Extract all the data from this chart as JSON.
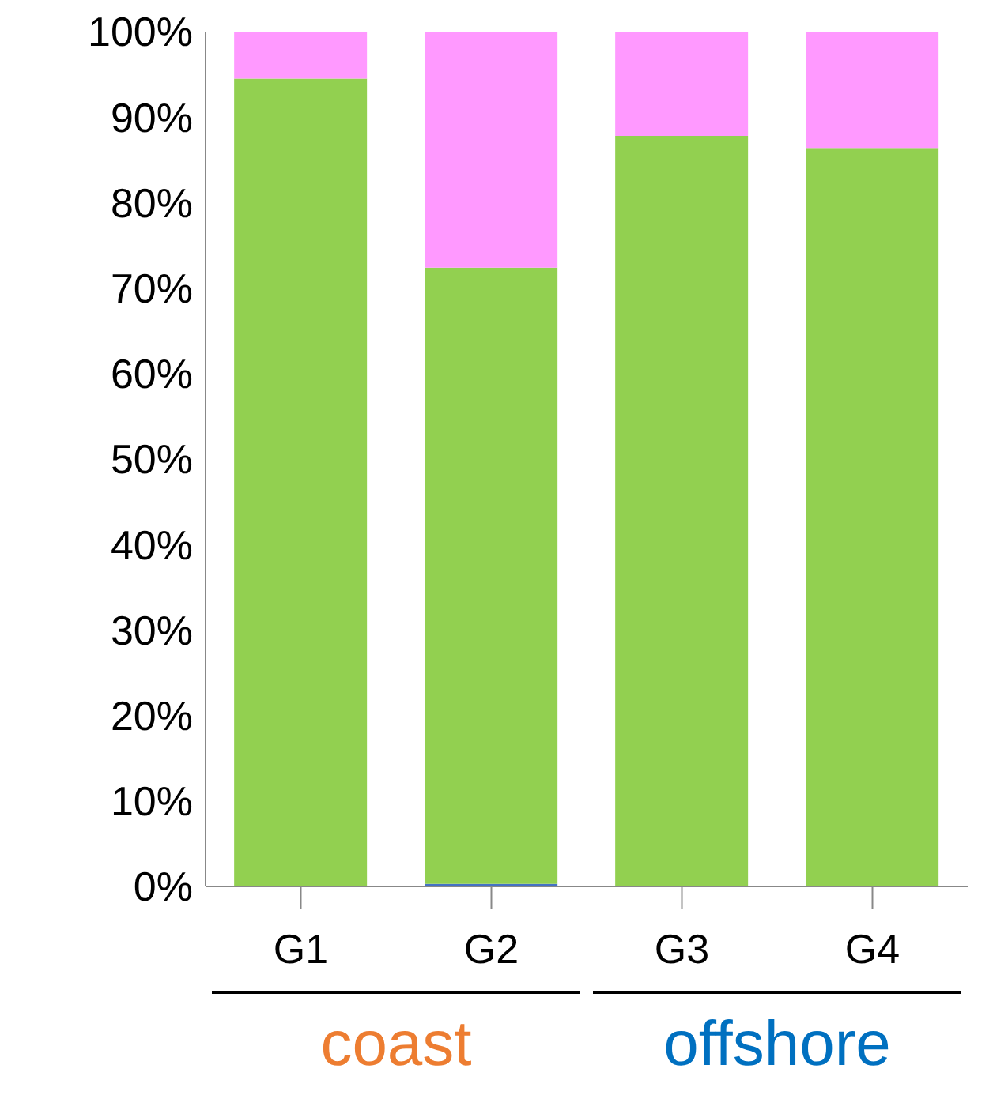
{
  "chart_data": {
    "type": "bar",
    "stacked": true,
    "categories": [
      "G1",
      "G2",
      "G3",
      "G4"
    ],
    "series": [
      {
        "color": "#4472c4",
        "values": [
          0,
          0.3,
          0,
          0
        ]
      },
      {
        "color": "#92d050",
        "values": [
          94.5,
          72.1,
          87.8,
          86.4
        ]
      },
      {
        "color": "#ff99ff",
        "values": [
          5.5,
          27.6,
          12.2,
          13.6
        ]
      }
    ],
    "ylim": [
      0,
      100
    ],
    "yticks": [
      {
        "value": 0,
        "label": "0%"
      },
      {
        "value": 10,
        "label": "10%"
      },
      {
        "value": 20,
        "label": "20%"
      },
      {
        "value": 30,
        "label": "30%"
      },
      {
        "value": 40,
        "label": "40%"
      },
      {
        "value": 50,
        "label": "50%"
      },
      {
        "value": 60,
        "label": "60%"
      },
      {
        "value": 70,
        "label": "70%"
      },
      {
        "value": 80,
        "label": "80%"
      },
      {
        "value": 90,
        "label": "90%"
      },
      {
        "value": 100,
        "label": "100%"
      }
    ],
    "annotations": [
      "coast",
      "offshore"
    ],
    "grid": false,
    "legend": false
  }
}
